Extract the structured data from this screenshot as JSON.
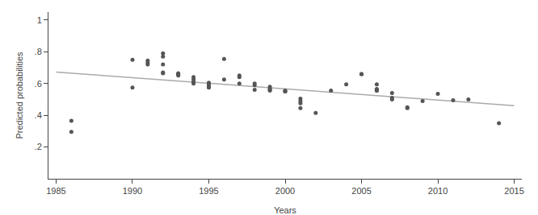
{
  "chart_data": {
    "type": "scatter",
    "xlabel": "Years",
    "ylabel": "Predicted probabilities",
    "xlim": [
      1984.5,
      2015.5
    ],
    "ylim": [
      0.0,
      1.05
    ],
    "xticks": [
      1985,
      1990,
      1995,
      2000,
      2005,
      2010,
      2015
    ],
    "yticks": [
      {
        "value": 0.2,
        "label": ".2"
      },
      {
        "value": 0.4,
        "label": ".4"
      },
      {
        "value": 0.6,
        "label": ".6"
      },
      {
        "value": 0.8,
        "label": ".8"
      },
      1
    ],
    "grid": false,
    "series": [
      {
        "type": "line",
        "color": "#aaaaaa",
        "x": [
          1985,
          2015
        ],
        "values": [
          0.672,
          0.46
        ]
      },
      {
        "type": "scatter",
        "color": "#555555",
        "marker": "circle",
        "x": [
          1986,
          1986,
          1990,
          1990,
          1991,
          1991,
          1991,
          1992,
          1992,
          1992,
          1992,
          1992,
          1993,
          1993,
          1993,
          1993,
          1994,
          1994,
          1994,
          1994,
          1995,
          1995,
          1995,
          1995,
          1995,
          1995,
          1996,
          1996,
          1997,
          1997,
          1997,
          1998,
          1998,
          1998,
          1999,
          1999,
          1999,
          1999,
          2000,
          2000,
          2000,
          2001,
          2001,
          2001,
          2001,
          2002,
          2003,
          2004,
          2005,
          2005,
          2006,
          2006,
          2006,
          2006,
          2006,
          2007,
          2007,
          2007,
          2008,
          2008,
          2009,
          2010,
          2011,
          2012,
          2014
        ],
        "values": [
          0.365,
          0.295,
          0.575,
          0.75,
          0.745,
          0.73,
          0.72,
          0.79,
          0.77,
          0.72,
          0.67,
          0.665,
          0.665,
          0.66,
          0.66,
          0.65,
          0.64,
          0.625,
          0.61,
          0.6,
          0.605,
          0.6,
          0.595,
          0.58,
          0.58,
          0.575,
          0.755,
          0.625,
          0.65,
          0.64,
          0.6,
          0.6,
          0.59,
          0.56,
          0.58,
          0.565,
          0.56,
          0.555,
          0.555,
          0.55,
          0.55,
          0.505,
          0.49,
          0.475,
          0.445,
          0.415,
          0.555,
          0.595,
          0.66,
          0.66,
          0.595,
          0.565,
          0.56,
          0.555,
          0.555,
          0.54,
          0.51,
          0.5,
          0.45,
          0.445,
          0.49,
          0.535,
          0.495,
          0.5,
          0.35
        ]
      }
    ]
  }
}
